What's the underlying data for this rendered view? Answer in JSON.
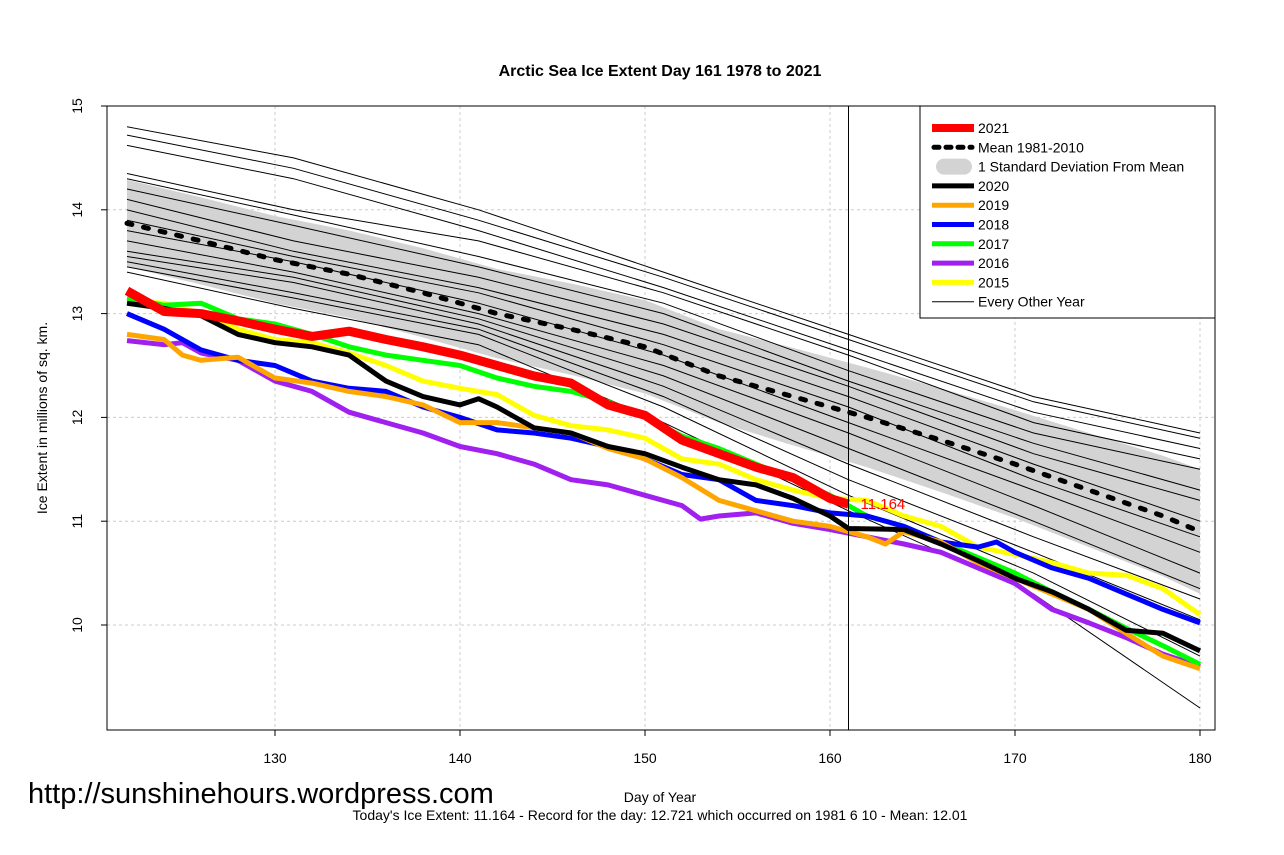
{
  "chart_data": {
    "type": "line",
    "title": "Arctic Sea Ice Extent Day 161 1978 to 2021",
    "xlabel": "Day of Year",
    "ylabel": "Ice Extent in millions of sq. km.",
    "xlim": [
      121.5,
      181
    ],
    "ylim": [
      9,
      15
    ],
    "xticks": [
      130,
      140,
      150,
      160,
      170,
      180
    ],
    "yticks": [
      10,
      11,
      12,
      13,
      14,
      15
    ],
    "grid": true,
    "legend_position": "top-right",
    "current_day": 161,
    "current_value_label": "11.164",
    "footer": "Today's Ice Extent: 11.164  - Record for the day: 12.721 which occurred on 1981 6 10  - Mean: 12.01",
    "watermark": "http://sunshinehours.wordpress.com",
    "legend": [
      {
        "label": "2021",
        "color": "#ff0000",
        "style": "thick"
      },
      {
        "label": "Mean 1981-2010",
        "color": "#000000",
        "style": "dotted"
      },
      {
        "label": "1 Standard Deviation From Mean",
        "color": "#d3d3d3",
        "style": "band"
      },
      {
        "label": "2020",
        "color": "#000000",
        "style": "solid"
      },
      {
        "label": "2019",
        "color": "#ffa500",
        "style": "solid"
      },
      {
        "label": "2018",
        "color": "#0000ff",
        "style": "solid"
      },
      {
        "label": "2017",
        "color": "#00ff00",
        "style": "solid"
      },
      {
        "label": "2016",
        "color": "#a020f0",
        "style": "solid"
      },
      {
        "label": "2015",
        "color": "#ffff00",
        "style": "solid"
      },
      {
        "label": "Every Other Year",
        "color": "#000000",
        "style": "thin"
      }
    ],
    "mean": {
      "x": [
        122,
        126,
        130,
        134,
        138,
        142,
        146,
        150,
        154,
        158,
        162,
        166,
        170,
        174,
        178,
        180
      ],
      "y": [
        13.87,
        13.7,
        13.52,
        13.38,
        13.2,
        13.0,
        12.85,
        12.68,
        12.4,
        12.2,
        12.0,
        11.78,
        11.55,
        11.3,
        11.05,
        10.9
      ],
      "sd": [
        0.42,
        0.42,
        0.42,
        0.42,
        0.43,
        0.43,
        0.44,
        0.45,
        0.45,
        0.47,
        0.48,
        0.5,
        0.52,
        0.55,
        0.58,
        0.6
      ]
    },
    "other_years": {
      "x": [
        122,
        131,
        141,
        151,
        161,
        171,
        180
      ],
      "lines": [
        [
          14.8,
          14.5,
          14.0,
          13.4,
          12.8,
          12.2,
          11.85
        ],
        [
          14.72,
          14.4,
          13.9,
          13.35,
          12.75,
          12.15,
          11.8
        ],
        [
          14.62,
          14.3,
          13.8,
          13.25,
          12.65,
          12.05,
          11.7
        ],
        [
          14.35,
          14.0,
          13.7,
          13.2,
          12.6,
          11.95,
          11.6
        ],
        [
          14.3,
          13.95,
          13.55,
          13.1,
          12.45,
          11.85,
          11.5
        ],
        [
          14.2,
          13.85,
          13.45,
          13.0,
          12.35,
          11.75,
          11.3
        ],
        [
          14.1,
          13.7,
          13.35,
          12.9,
          12.3,
          11.65,
          11.2
        ],
        [
          14.0,
          13.6,
          13.25,
          12.8,
          12.2,
          11.55,
          11.0
        ],
        [
          13.9,
          13.55,
          13.2,
          12.7,
          12.1,
          11.4,
          10.85
        ],
        [
          13.8,
          13.5,
          13.1,
          12.6,
          11.95,
          11.3,
          10.7
        ],
        [
          13.7,
          13.4,
          13.0,
          12.5,
          11.85,
          11.15,
          10.5
        ],
        [
          13.6,
          13.35,
          12.95,
          12.4,
          11.7,
          11.0,
          10.35
        ],
        [
          13.55,
          13.3,
          12.9,
          12.3,
          11.55,
          10.85,
          10.25
        ],
        [
          13.5,
          13.2,
          12.85,
          12.2,
          11.4,
          10.7,
          10.05
        ],
        [
          13.45,
          13.15,
          12.8,
          12.1,
          11.25,
          10.5,
          9.7
        ],
        [
          13.4,
          13.05,
          12.7,
          11.95,
          11.1,
          10.3,
          9.2
        ]
      ]
    },
    "series": [
      {
        "name": "2015",
        "color": "#ffff00",
        "x": [
          122,
          124,
          126,
          128,
          130,
          132,
          134,
          136,
          138,
          140,
          142,
          144,
          146,
          148,
          150,
          152,
          154,
          156,
          158,
          160,
          162,
          164,
          166,
          168,
          170,
          172,
          174,
          176,
          178,
          180
        ],
        "y": [
          13.12,
          13.1,
          13.0,
          12.85,
          12.75,
          12.72,
          12.62,
          12.5,
          12.35,
          12.28,
          12.22,
          12.02,
          11.92,
          11.88,
          11.8,
          11.6,
          11.55,
          11.4,
          11.3,
          11.22,
          11.2,
          11.05,
          10.95,
          10.75,
          10.68,
          10.6,
          10.5,
          10.48,
          10.35,
          10.1
        ]
      },
      {
        "name": "2016",
        "color": "#a020f0",
        "x": [
          122,
          124,
          125,
          126,
          128,
          130,
          132,
          134,
          136,
          138,
          140,
          142,
          144,
          146,
          148,
          150,
          152,
          153,
          154,
          156,
          158,
          160,
          162,
          164,
          166,
          168,
          170,
          172,
          174,
          176,
          178,
          180
        ],
        "y": [
          12.74,
          12.7,
          12.72,
          12.62,
          12.55,
          12.35,
          12.25,
          12.05,
          11.95,
          11.85,
          11.72,
          11.65,
          11.55,
          11.4,
          11.35,
          11.25,
          11.15,
          11.02,
          11.05,
          11.08,
          10.98,
          10.92,
          10.85,
          10.78,
          10.7,
          10.55,
          10.4,
          10.15,
          10.02,
          9.88,
          9.72,
          9.6
        ]
      },
      {
        "name": "2017",
        "color": "#00ff00",
        "x": [
          122,
          124,
          126,
          128,
          130,
          132,
          134,
          136,
          138,
          140,
          142,
          144,
          146,
          148,
          150,
          152,
          154,
          156,
          158,
          160,
          162,
          164,
          166,
          168,
          170,
          172,
          174,
          176,
          178,
          180
        ],
        "y": [
          13.15,
          13.08,
          13.1,
          12.95,
          12.9,
          12.8,
          12.68,
          12.6,
          12.55,
          12.5,
          12.38,
          12.3,
          12.25,
          12.15,
          12.0,
          11.82,
          11.7,
          11.55,
          11.4,
          11.25,
          11.05,
          10.95,
          10.8,
          10.65,
          10.5,
          10.32,
          10.15,
          9.97,
          9.8,
          9.62
        ]
      },
      {
        "name": "2018",
        "color": "#0000ff",
        "x": [
          122,
          124,
          126,
          128,
          130,
          132,
          134,
          136,
          138,
          140,
          142,
          144,
          146,
          148,
          150,
          152,
          154,
          156,
          158,
          160,
          162,
          164,
          166,
          168,
          169,
          170,
          172,
          174,
          176,
          178,
          180
        ],
        "y": [
          13.0,
          12.85,
          12.65,
          12.55,
          12.5,
          12.35,
          12.28,
          12.25,
          12.1,
          12.0,
          11.88,
          11.85,
          11.8,
          11.72,
          11.6,
          11.45,
          11.4,
          11.2,
          11.15,
          11.08,
          11.05,
          10.95,
          10.8,
          10.75,
          10.8,
          10.7,
          10.55,
          10.45,
          10.3,
          10.15,
          10.02
        ]
      },
      {
        "name": "2019",
        "color": "#ffa500",
        "x": [
          122,
          124,
          125,
          126,
          128,
          130,
          132,
          134,
          136,
          138,
          140,
          142,
          144,
          146,
          148,
          150,
          152,
          154,
          156,
          158,
          160,
          162,
          163,
          164,
          166,
          168,
          170,
          172,
          174,
          176,
          178,
          180
        ],
        "y": [
          12.8,
          12.75,
          12.6,
          12.55,
          12.58,
          12.38,
          12.33,
          12.25,
          12.2,
          12.12,
          11.95,
          11.95,
          11.9,
          11.85,
          11.7,
          11.6,
          11.42,
          11.2,
          11.1,
          11.0,
          10.95,
          10.85,
          10.78,
          10.9,
          10.8,
          10.6,
          10.45,
          10.3,
          10.15,
          9.92,
          9.7,
          9.58
        ]
      },
      {
        "name": "2020",
        "color": "#000000",
        "x": [
          122,
          124,
          126,
          128,
          130,
          132,
          134,
          136,
          138,
          140,
          141,
          142,
          144,
          146,
          148,
          150,
          152,
          154,
          156,
          158,
          160,
          161,
          164,
          166,
          168,
          170,
          172,
          174,
          176,
          178,
          180
        ],
        "y": [
          13.1,
          13.05,
          12.98,
          12.8,
          12.72,
          12.68,
          12.6,
          12.35,
          12.2,
          12.12,
          12.18,
          12.1,
          11.9,
          11.85,
          11.72,
          11.65,
          11.52,
          11.4,
          11.35,
          11.22,
          11.05,
          10.93,
          10.92,
          10.78,
          10.62,
          10.45,
          10.32,
          10.15,
          9.95,
          9.92,
          9.75
        ]
      },
      {
        "name": "2021",
        "color": "#ff0000",
        "x": [
          122,
          124,
          126,
          128,
          130,
          132,
          134,
          136,
          138,
          140,
          142,
          144,
          146,
          148,
          150,
          152,
          154,
          156,
          158,
          160,
          161
        ],
        "y": [
          13.22,
          13.02,
          13.0,
          12.93,
          12.85,
          12.78,
          12.83,
          12.75,
          12.68,
          12.6,
          12.5,
          12.4,
          12.33,
          12.12,
          12.02,
          11.78,
          11.65,
          11.52,
          11.42,
          11.22,
          11.164
        ]
      }
    ]
  }
}
